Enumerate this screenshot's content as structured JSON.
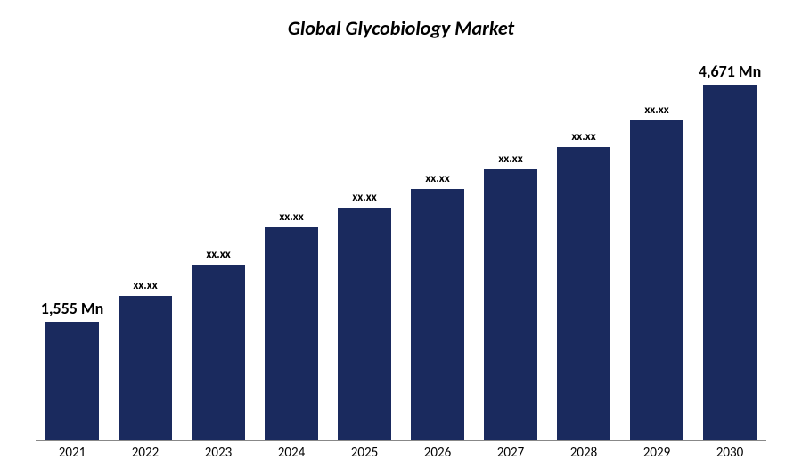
{
  "chart": {
    "type": "bar",
    "title": "Global Glycobiology Market",
    "title_fontsize": 22,
    "title_color": "#000000",
    "background_color": "#ffffff",
    "bar_color": "#1a2a5e",
    "axis_color": "#888888",
    "label_color": "#000000",
    "xtick_fontsize": 15,
    "bar_label_fontsize_small": 13,
    "bar_label_fontsize_large": 18,
    "ylim": [
      0,
      4900
    ],
    "bar_width": 0.72,
    "categories": [
      "2021",
      "2022",
      "2023",
      "2024",
      "2025",
      "2026",
      "2027",
      "2028",
      "2029",
      "2030"
    ],
    "values": [
      1555,
      1900,
      2300,
      2800,
      3050,
      3300,
      3550,
      3850,
      4200,
      4671
    ],
    "value_labels": [
      "1,555 Mn",
      "xx.xx",
      "xx.xx",
      "xx.xx",
      "xx.xx",
      "xx.xx",
      "xx.xx",
      "xx.xx",
      "xx.xx",
      "4,671 Mn"
    ],
    "value_label_large_flags": [
      true,
      false,
      false,
      false,
      false,
      false,
      false,
      false,
      false,
      true
    ]
  }
}
